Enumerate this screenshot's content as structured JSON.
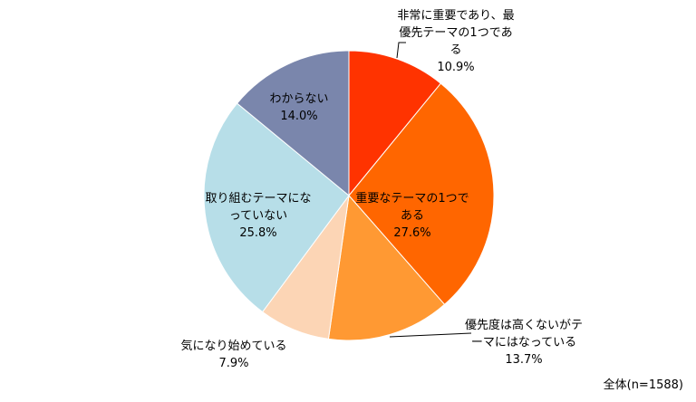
{
  "chart_data": {
    "type": "pie",
    "categories": [
      "非常に重要であり、最優先テーマの1つである",
      "重要なテーマの1つである",
      "優先度は高くないがテーマにはなっている",
      "気になり始めている",
      "取り組むテーマになっていない",
      "わからない"
    ],
    "values": [
      10.9,
      27.6,
      13.7,
      7.9,
      25.8,
      14.0
    ],
    "value_labels": [
      "10.9%",
      "27.6%",
      "13.7%",
      "7.9%",
      "25.8%",
      "14.0%"
    ],
    "colors": [
      "#ff3300",
      "#ff6600",
      "#ff9933",
      "#fcd5b5",
      "#b7dee8",
      "#7a86ac"
    ],
    "note": "全体(n=1588)"
  }
}
